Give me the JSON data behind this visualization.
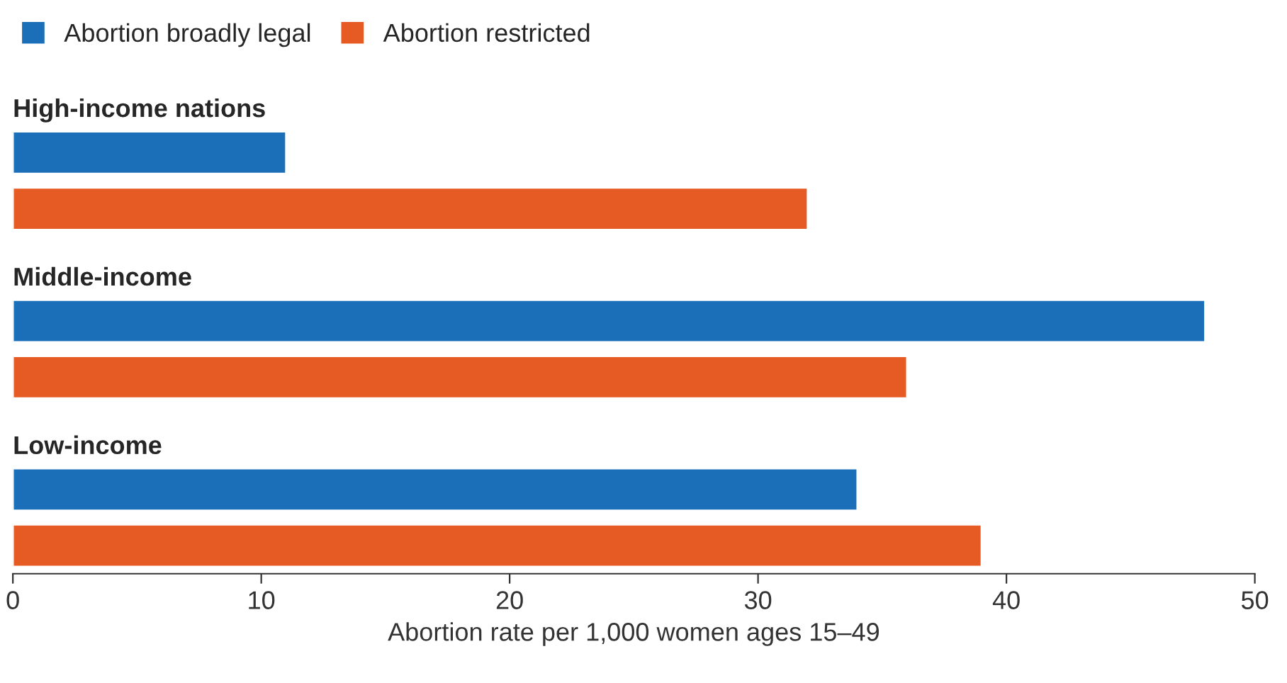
{
  "chart_data": {
    "type": "bar",
    "orientation": "horizontal",
    "categories": [
      "High-income nations",
      "Middle-income",
      "Low-income"
    ],
    "series": [
      {
        "name": "Abortion broadly legal",
        "color": "#1a6fb8",
        "values": [
          11,
          48,
          34
        ]
      },
      {
        "name": "Abortion restricted",
        "color": "#e65a23",
        "values": [
          32,
          36,
          39
        ]
      }
    ],
    "xlabel": "Abortion rate per 1,000 women ages 15–49",
    "xlim": [
      0,
      50
    ],
    "xticks": [
      0,
      10,
      20,
      30,
      40,
      50
    ],
    "legend": "top left",
    "grid": false
  }
}
